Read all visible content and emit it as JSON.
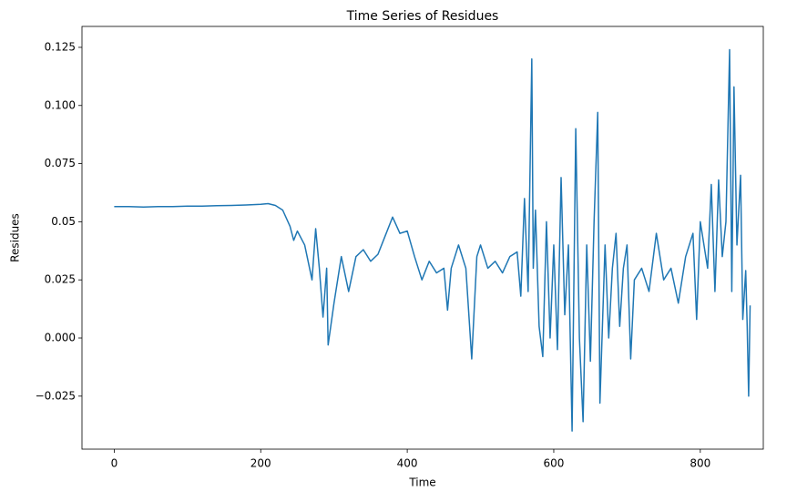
{
  "chart_data": {
    "type": "line",
    "title": "Time Series of Residues",
    "x_label": "Time",
    "y_label": "Residues",
    "x": [
      0,
      20,
      40,
      60,
      80,
      100,
      120,
      140,
      160,
      180,
      200,
      210,
      220,
      230,
      240,
      245,
      250,
      260,
      270,
      275,
      280,
      285,
      290,
      292,
      300,
      310,
      320,
      330,
      340,
      350,
      360,
      370,
      380,
      390,
      400,
      410,
      420,
      430,
      440,
      450,
      455,
      460,
      470,
      480,
      488,
      495,
      500,
      510,
      520,
      530,
      540,
      550,
      555,
      560,
      565,
      570,
      572,
      575,
      580,
      585,
      590,
      595,
      600,
      605,
      610,
      615,
      620,
      625,
      630,
      635,
      640,
      645,
      650,
      655,
      660,
      663,
      670,
      675,
      680,
      685,
      690,
      695,
      700,
      705,
      710,
      720,
      730,
      740,
      750,
      760,
      770,
      780,
      790,
      795,
      800,
      810,
      815,
      820,
      825,
      830,
      835,
      840,
      843,
      846,
      850,
      855,
      858,
      862,
      864,
      866,
      868
    ],
    "series": [
      {
        "name": "Residues",
        "color": "#1f77b4",
        "values": [
          0.0565,
          0.0565,
          0.0563,
          0.0565,
          0.0565,
          0.0567,
          0.0567,
          0.0569,
          0.057,
          0.0572,
          0.0575,
          0.0578,
          0.057,
          0.055,
          0.048,
          0.042,
          0.046,
          0.04,
          0.025,
          0.047,
          0.03,
          0.009,
          0.03,
          -0.003,
          0.015,
          0.035,
          0.02,
          0.035,
          0.038,
          0.033,
          0.036,
          0.044,
          0.052,
          0.045,
          0.046,
          0.035,
          0.025,
          0.033,
          0.028,
          0.03,
          0.012,
          0.03,
          0.04,
          0.03,
          -0.009,
          0.035,
          0.04,
          0.03,
          0.033,
          0.028,
          0.035,
          0.037,
          0.018,
          0.06,
          0.02,
          0.12,
          0.03,
          0.055,
          0.005,
          -0.008,
          0.05,
          0.0,
          0.04,
          -0.005,
          0.069,
          0.01,
          0.04,
          -0.04,
          0.09,
          0.0,
          -0.036,
          0.04,
          -0.01,
          0.05,
          0.097,
          -0.028,
          0.04,
          0.0,
          0.03,
          0.045,
          0.005,
          0.03,
          0.04,
          -0.009,
          0.025,
          0.03,
          0.02,
          0.045,
          0.025,
          0.03,
          0.015,
          0.035,
          0.045,
          0.008,
          0.05,
          0.03,
          0.066,
          0.02,
          0.068,
          0.035,
          0.05,
          0.124,
          0.02,
          0.108,
          0.04,
          0.07,
          0.008,
          0.029,
          0.005,
          -0.025,
          0.014
        ]
      }
    ],
    "xlim": [
      -44,
      886
    ],
    "xticks": [
      0,
      200,
      400,
      600,
      800
    ],
    "ylim": [
      -0.0478,
      0.134
    ],
    "yticks": [
      {
        "value": -0.025,
        "label": "−0.025"
      },
      {
        "value": 0,
        "label": "0.000"
      },
      0.025,
      0.05,
      0.075,
      {
        "value": 0.1,
        "label": "0.100"
      },
      0.125
    ]
  }
}
